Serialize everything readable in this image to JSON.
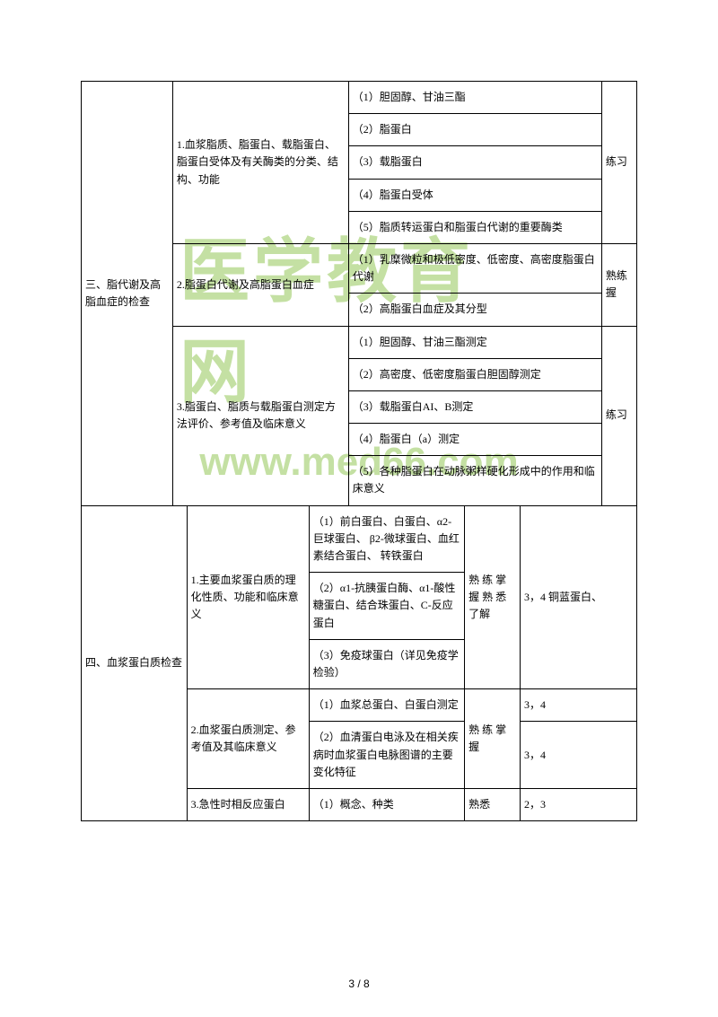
{
  "watermarks": {
    "text1": "医学教育网",
    "text2": "www.med66.com"
  },
  "section3": {
    "header": "三、脂代谢及高脂血症的检查",
    "group1": {
      "title": "1.血浆脂质、脂蛋白、载脂蛋白、脂蛋白受体及有关酶类的分类、结构、功能",
      "items": {
        "i1": "（1）胆固醇、甘油三酯",
        "i2": "（2）脂蛋白",
        "i3": "（3）载脂蛋白",
        "i4": "（4）脂蛋白受体",
        "i5": "（5）脂质转运蛋白和脂蛋白代谢的重要酶类"
      },
      "note": "练习"
    },
    "group2": {
      "title": "2.脂蛋白代谢及高脂蛋白血症",
      "items": {
        "i1": "（1）乳糜微粒和极低密度、低密度、高密度脂蛋白代谢",
        "i2": "（2）高脂蛋白血症及其分型"
      },
      "note": "熟练握"
    },
    "group3": {
      "title": "3.脂蛋白、脂质与载脂蛋白测定方法评价、参考值及临床意义",
      "items": {
        "i1": "（1）胆固醇、甘油三酯测定",
        "i2": "（2）高密度、低密度脂蛋白胆固醇测定",
        "i3": "（3）载脂蛋白AI、B测定",
        "i4": "（4）脂蛋白（a）测定",
        "i5": "（5）各种脂蛋白在动脉粥样硬化形成中的作用和临床意义"
      },
      "note": "练习"
    }
  },
  "section4": {
    "header": "四、血浆蛋白质检查",
    "group1": {
      "title": "1.主要血浆蛋白质的理化性质、功能和临床意义",
      "items": {
        "i1": "（1）前白蛋白、白蛋白、α2-巨球蛋白、 β2-微球蛋白、血红素结合蛋白、 转铁蛋白",
        "i2": "（2）α1-抗胰蛋白酶、α1-酸性糖蛋白、结合珠蛋白、C-反应蛋白",
        "i3": "（3）免疫球蛋白（详见免疫学检验）"
      },
      "mastery": "熟 练 掌握 熟 悉  了解",
      "ref": "3，4  铜蓝蛋白、"
    },
    "group2": {
      "title": "2.血浆蛋白质测定、参考值及其临床意义",
      "items": {
        "i1": "（1）血浆总蛋白、白蛋白测定",
        "i2": "（2）血清蛋白电泳及在相关疾病时血浆蛋白电脉图谱的主要变化特征"
      },
      "mastery": "熟 练 掌握",
      "ref1": "3，4",
      "ref2": "3，4"
    },
    "group3": {
      "title": "3.急性时相反应蛋白",
      "items": {
        "i1": "（1）概念、种类"
      },
      "mastery": "熟悉",
      "ref": "2，3"
    }
  },
  "pageNumber": "3 / 8"
}
